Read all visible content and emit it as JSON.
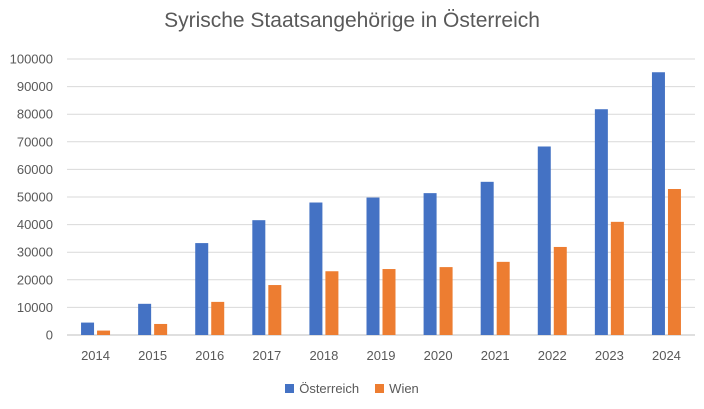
{
  "chart_data": {
    "type": "bar",
    "title": "Syrische Staatsangehörige in Österreich",
    "xlabel": "",
    "ylabel": "",
    "ylim": [
      0,
      100000
    ],
    "yticks": [
      0,
      10000,
      20000,
      30000,
      40000,
      50000,
      60000,
      70000,
      80000,
      90000,
      100000
    ],
    "grid": true,
    "legend_position": "bottom",
    "categories": [
      "2014",
      "2015",
      "2016",
      "2017",
      "2018",
      "2019",
      "2020",
      "2021",
      "2022",
      "2023",
      "2024"
    ],
    "series": [
      {
        "name": "Österreich",
        "color": "#4472C4",
        "values": [
          4500,
          11300,
          33300,
          41600,
          48000,
          49800,
          51400,
          55500,
          68300,
          81800,
          95200
        ]
      },
      {
        "name": "Wien",
        "color": "#ED7D31",
        "values": [
          1600,
          4000,
          12000,
          18100,
          23100,
          23900,
          24600,
          26500,
          31900,
          41000,
          52900
        ]
      }
    ]
  }
}
